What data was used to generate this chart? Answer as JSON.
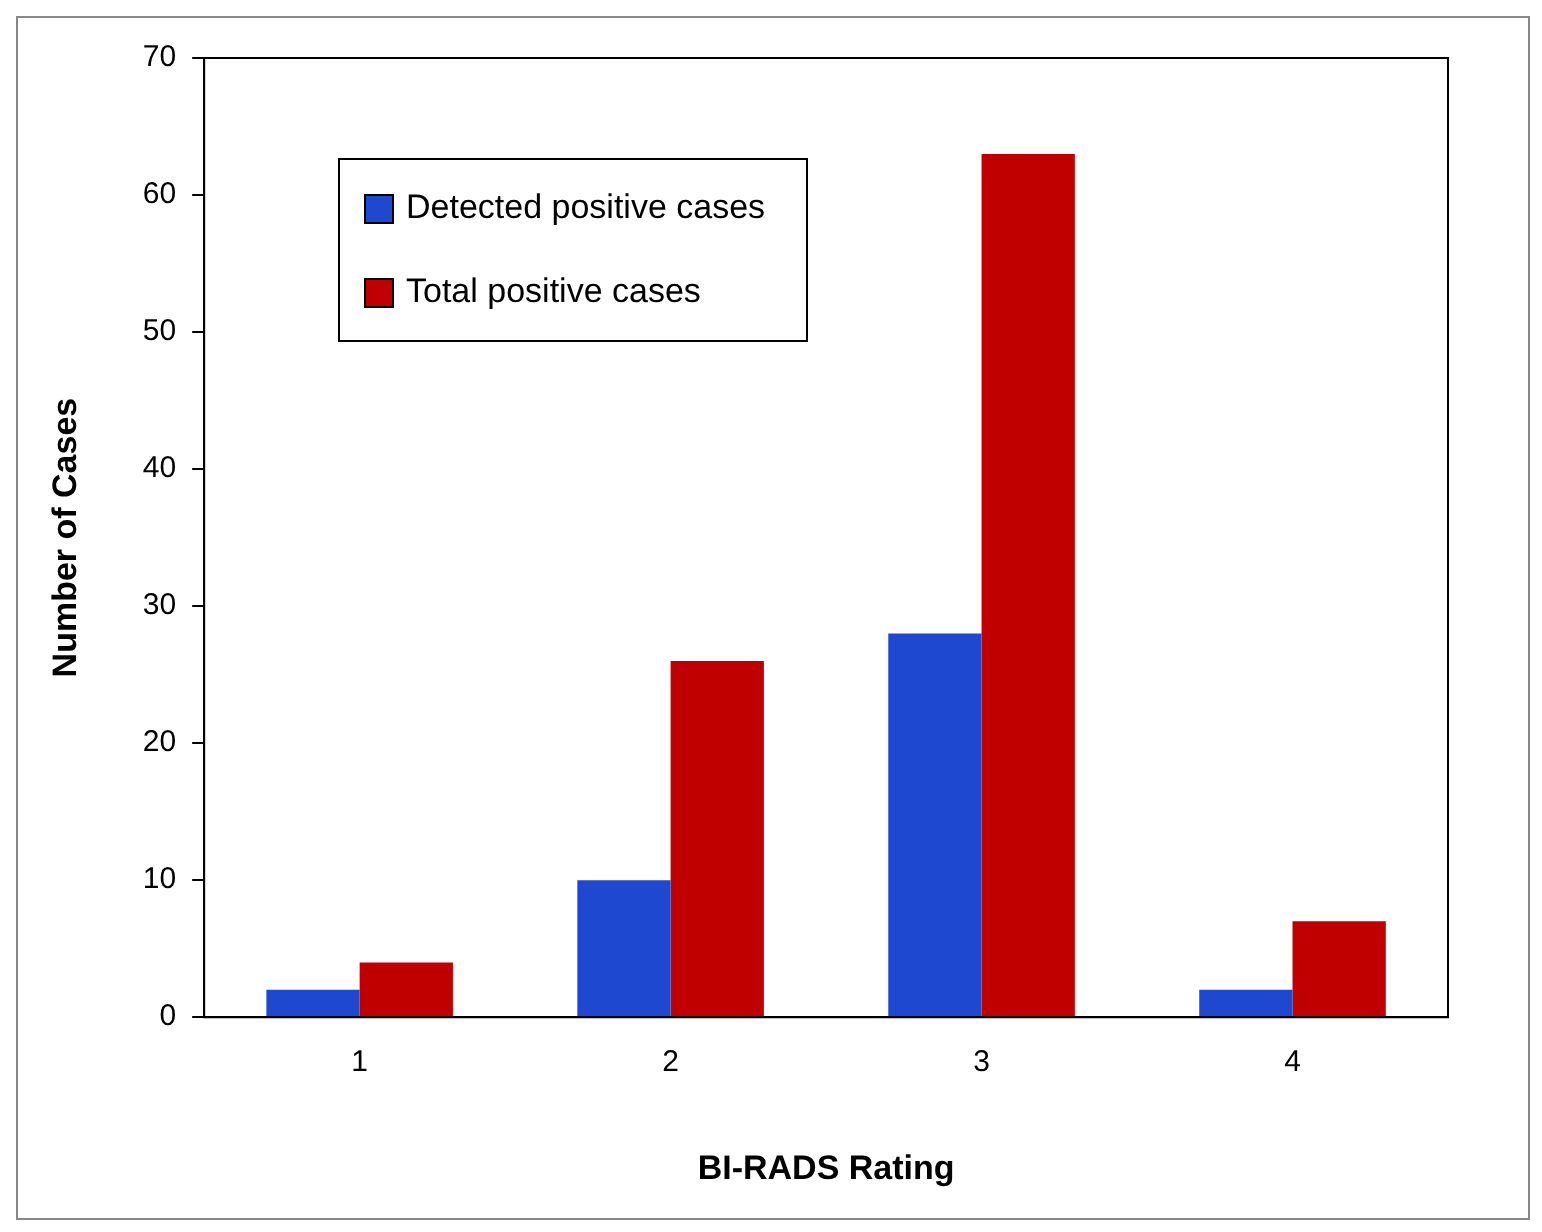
{
  "chart_data": {
    "type": "bar",
    "xlabel": "BI-RADS Rating",
    "ylabel": "Number of Cases",
    "categories": [
      "1",
      "2",
      "3",
      "4"
    ],
    "series": [
      {
        "name": "Detected positive cases",
        "color": "#1f48d0",
        "values": [
          2,
          10,
          28,
          2
        ]
      },
      {
        "name": "Total positive cases",
        "color": "#c00000",
        "values": [
          4,
          26,
          63,
          7
        ]
      }
    ],
    "ylim": [
      0,
      70
    ],
    "yticks": [
      0,
      10,
      20,
      30,
      40,
      50,
      60,
      70
    ],
    "grid": false,
    "legend": "top left"
  }
}
